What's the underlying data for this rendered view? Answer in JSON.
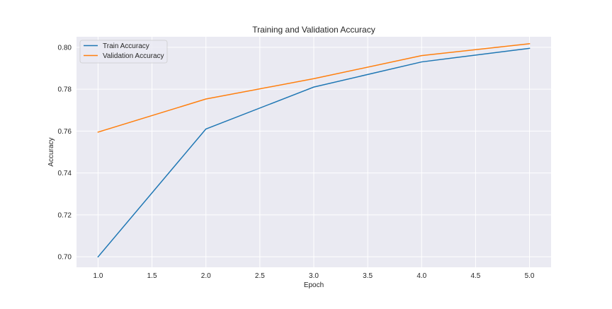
{
  "chart_data": {
    "type": "line",
    "title": "Training and Validation Accuracy",
    "xlabel": "Epoch",
    "ylabel": "Accuracy",
    "xlim": [
      0.8,
      5.2
    ],
    "ylim": [
      0.695,
      0.805
    ],
    "x_ticks": [
      1.0,
      1.5,
      2.0,
      2.5,
      3.0,
      3.5,
      4.0,
      4.5,
      5.0
    ],
    "x_tick_labels": [
      "1.0",
      "1.5",
      "2.0",
      "2.5",
      "3.0",
      "3.5",
      "4.0",
      "4.5",
      "5.0"
    ],
    "y_ticks": [
      0.7,
      0.72,
      0.74,
      0.76,
      0.78,
      0.8
    ],
    "y_tick_labels": [
      "0.70",
      "0.72",
      "0.74",
      "0.76",
      "0.78",
      "0.80"
    ],
    "grid": true,
    "background": "#eaeaf2",
    "grid_color": "#ffffff",
    "legend_position": "top-left",
    "x": [
      1,
      2,
      3,
      4,
      5
    ],
    "series": [
      {
        "name": "Train Accuracy",
        "color": "#1f77b4",
        "values": [
          0.7,
          0.761,
          0.781,
          0.793,
          0.7995
        ]
      },
      {
        "name": "Validation Accuracy",
        "color": "#ff7f0e",
        "values": [
          0.7595,
          0.7753,
          0.785,
          0.796,
          0.8017
        ]
      }
    ]
  }
}
